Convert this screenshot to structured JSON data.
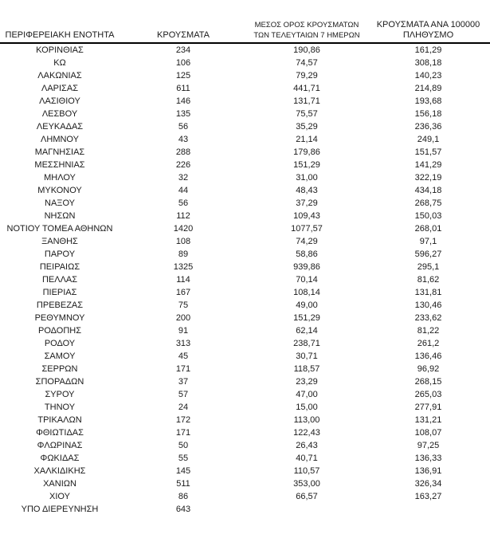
{
  "colors": {
    "text": "#1a1a1a",
    "header_rule": "#000000",
    "background": "#ffffff"
  },
  "header_display": {
    "col1": "ΠΕΡΙΦΕΡΕΙΑΚΗ ΕΝΟΤΗΤΑ",
    "col2": "ΚΡΟΥΣΜΑΤΑ",
    "col3_line1": "ΜΕΣΟΣ ΟΡΟΣ ΚΡΟΥΣΜΑΤΩΝ",
    "col3_line2": "ΤΩΝ ΤΕΛΕΥΤΑΙΩΝ 7 ΗΜΕΡΩΝ",
    "col4_line1": "ΚΡΟΥΣΜΑΤΑ ΑΝΑ 100000",
    "col4_line2": "ΠΛΗΘΥΣΜΟ"
  },
  "chart_data": {
    "type": "table",
    "columns": [
      "ΠΕΡΙΦΕΡΕΙΑΚΗ ΕΝΟΤΗΤΑ",
      "ΚΡΟΥΣΜΑΤΑ",
      "ΜΕΣΟΣ ΟΡΟΣ ΚΡΟΥΣΜΑΤΩΝ ΤΩΝ ΤΕΛΕΥΤΑΙΩΝ 7 ΗΜΕΡΩΝ",
      "ΚΡΟΥΣΜΑΤΑ ΑΝΑ 100000 ΠΛΗΘΥΣΜΟ"
    ],
    "rows": [
      [
        "ΚΟΡΙΝΘΙΑΣ",
        "234",
        "190,86",
        "161,29"
      ],
      [
        "ΚΩ",
        "106",
        "74,57",
        "308,18"
      ],
      [
        "ΛΑΚΩΝΙΑΣ",
        "125",
        "79,29",
        "140,23"
      ],
      [
        "ΛΑΡΙΣΑΣ",
        "611",
        "441,71",
        "214,89"
      ],
      [
        "ΛΑΣΙΘΙΟΥ",
        "146",
        "131,71",
        "193,68"
      ],
      [
        "ΛΕΣΒΟΥ",
        "135",
        "75,57",
        "156,18"
      ],
      [
        "ΛΕΥΚΑΔΑΣ",
        "56",
        "35,29",
        "236,36"
      ],
      [
        "ΛΗΜΝΟΥ",
        "43",
        "21,14",
        "249,1"
      ],
      [
        "ΜΑΓΝΗΣΙΑΣ",
        "288",
        "179,86",
        "151,57"
      ],
      [
        "ΜΕΣΣΗΝΙΑΣ",
        "226",
        "151,29",
        "141,29"
      ],
      [
        "ΜΗΛΟΥ",
        "32",
        "31,00",
        "322,19"
      ],
      [
        "ΜΥΚΟΝΟΥ",
        "44",
        "48,43",
        "434,18"
      ],
      [
        "ΝΑΞΟΥ",
        "56",
        "37,29",
        "268,75"
      ],
      [
        "ΝΗΣΩΝ",
        "112",
        "109,43",
        "150,03"
      ],
      [
        "ΝΟΤΙΟΥ ΤΟΜΕΑ ΑΘΗΝΩΝ",
        "1420",
        "1077,57",
        "268,01"
      ],
      [
        "ΞΑΝΘΗΣ",
        "108",
        "74,29",
        "97,1"
      ],
      [
        "ΠΑΡΟΥ",
        "89",
        "58,86",
        "596,27"
      ],
      [
        "ΠΕΙΡΑΙΩΣ",
        "1325",
        "939,86",
        "295,1"
      ],
      [
        "ΠΕΛΛΑΣ",
        "114",
        "70,14",
        "81,62"
      ],
      [
        "ΠΙΕΡΙΑΣ",
        "167",
        "108,14",
        "131,81"
      ],
      [
        "ΠΡΕΒΕΖΑΣ",
        "75",
        "49,00",
        "130,46"
      ],
      [
        "ΡΕΘΥΜΝΟΥ",
        "200",
        "151,29",
        "233,62"
      ],
      [
        "ΡΟΔΟΠΗΣ",
        "91",
        "62,14",
        "81,22"
      ],
      [
        "ΡΟΔΟΥ",
        "313",
        "238,71",
        "261,2"
      ],
      [
        "ΣΑΜΟΥ",
        "45",
        "30,71",
        "136,46"
      ],
      [
        "ΣΕΡΡΩΝ",
        "171",
        "118,57",
        "96,92"
      ],
      [
        "ΣΠΟΡΑΔΩΝ",
        "37",
        "23,29",
        "268,15"
      ],
      [
        "ΣΥΡΟΥ",
        "57",
        "47,00",
        "265,03"
      ],
      [
        "ΤΗΝΟΥ",
        "24",
        "15,00",
        "277,91"
      ],
      [
        "ΤΡΙΚΑΛΩΝ",
        "172",
        "113,00",
        "131,21"
      ],
      [
        "ΦΘΙΩΤΙΔΑΣ",
        "171",
        "122,43",
        "108,07"
      ],
      [
        "ΦΛΩΡΙΝΑΣ",
        "50",
        "26,43",
        "97,25"
      ],
      [
        "ΦΩΚΙΔΑΣ",
        "55",
        "40,71",
        "136,33"
      ],
      [
        "ΧΑΛΚΙΔΙΚΗΣ",
        "145",
        "110,57",
        "136,91"
      ],
      [
        "ΧΑΝΙΩΝ",
        "511",
        "353,00",
        "326,34"
      ],
      [
        "ΧΙΟΥ",
        "86",
        "66,57",
        "163,27"
      ],
      [
        "ΥΠΟ ΔΙΕΡΕΥΝΗΣΗ",
        "643",
        "",
        ""
      ]
    ]
  }
}
